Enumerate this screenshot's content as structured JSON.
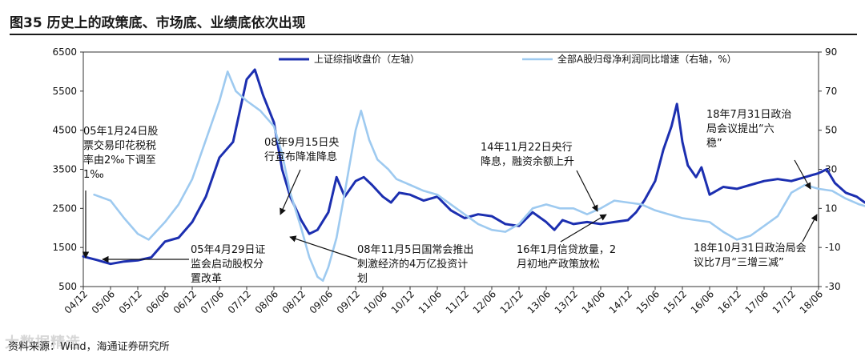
{
  "title": "图35 历史上的政策底、市场底、业绩底依次出现",
  "source": "资料来源：Wind，海通证券研究所",
  "watermark": "大数据精选",
  "chart_data": {
    "type": "line",
    "x": [
      "04/12",
      "05/06",
      "05/12",
      "06/06",
      "06/12",
      "07/06",
      "07/12",
      "08/06",
      "08/12",
      "09/06",
      "09/12",
      "10/06",
      "10/12",
      "11/06",
      "11/12",
      "12/06",
      "12/12",
      "13/06",
      "13/12",
      "14/06",
      "14/12",
      "15/06",
      "15/12",
      "16/06",
      "16/12",
      "17/06",
      "17/12",
      "18/06"
    ],
    "y_left": {
      "min": 500,
      "max": 6500,
      "ticks": [
        500,
        1500,
        2500,
        3500,
        4500,
        5500,
        6500
      ]
    },
    "y_right": {
      "min": -30,
      "max": 90,
      "ticks": [
        -30,
        -10,
        10,
        30,
        50,
        70,
        90
      ]
    },
    "series": [
      {
        "name": "上证综指收盘价（左轴）",
        "axis": "left",
        "color": "#1c2fb0",
        "points": [
          [
            0,
            1270
          ],
          [
            0.5,
            1180
          ],
          [
            1.0,
            1080
          ],
          [
            1.5,
            1140
          ],
          [
            2.0,
            1170
          ],
          [
            2.5,
            1250
          ],
          [
            3.0,
            1650
          ],
          [
            3.5,
            1750
          ],
          [
            4.0,
            2150
          ],
          [
            4.5,
            2800
          ],
          [
            5.0,
            3800
          ],
          [
            5.5,
            4200
          ],
          [
            6.0,
            5800
          ],
          [
            6.3,
            6050
          ],
          [
            6.6,
            5400
          ],
          [
            7.0,
            4700
          ],
          [
            7.3,
            3500
          ],
          [
            7.6,
            2800
          ],
          [
            8.0,
            2200
          ],
          [
            8.3,
            1850
          ],
          [
            8.6,
            1950
          ],
          [
            9.0,
            2400
          ],
          [
            9.3,
            3300
          ],
          [
            9.6,
            2800
          ],
          [
            10.0,
            3200
          ],
          [
            10.3,
            3300
          ],
          [
            10.6,
            3100
          ],
          [
            11.0,
            2800
          ],
          [
            11.3,
            2650
          ],
          [
            11.6,
            2900
          ],
          [
            12.0,
            2850
          ],
          [
            12.5,
            2700
          ],
          [
            13.0,
            2800
          ],
          [
            13.5,
            2450
          ],
          [
            14.0,
            2250
          ],
          [
            14.5,
            2350
          ],
          [
            15.0,
            2300
          ],
          [
            15.5,
            2100
          ],
          [
            16.0,
            2050
          ],
          [
            16.5,
            2400
          ],
          [
            17.0,
            2150
          ],
          [
            17.3,
            1950
          ],
          [
            17.6,
            2200
          ],
          [
            18.0,
            2100
          ],
          [
            18.5,
            2150
          ],
          [
            19.0,
            2100
          ],
          [
            19.5,
            2150
          ],
          [
            20.0,
            2200
          ],
          [
            20.3,
            2400
          ],
          [
            20.6,
            2700
          ],
          [
            21.0,
            3200
          ],
          [
            21.3,
            4000
          ],
          [
            21.6,
            4600
          ],
          [
            21.8,
            5170
          ],
          [
            22.0,
            4200
          ],
          [
            22.2,
            3600
          ],
          [
            22.5,
            3300
          ],
          [
            22.7,
            3550
          ],
          [
            23.0,
            2850
          ],
          [
            23.5,
            3050
          ],
          [
            24.0,
            3000
          ],
          [
            24.5,
            3100
          ],
          [
            25.0,
            3200
          ],
          [
            25.5,
            3250
          ],
          [
            26.0,
            3200
          ],
          [
            26.5,
            3300
          ],
          [
            27.0,
            3400
          ],
          [
            27.3,
            3500
          ],
          [
            27.6,
            3150
          ],
          [
            28.0,
            2900
          ],
          [
            28.4,
            2800
          ],
          [
            28.7,
            2650
          ],
          [
            29.0,
            2600
          ]
        ]
      },
      {
        "name": "全部A股归母净利润同比增速（右轴，%）",
        "axis": "right",
        "color": "#9ecaf0",
        "points": [
          [
            0.4,
            17
          ],
          [
            1.0,
            14
          ],
          [
            1.5,
            5
          ],
          [
            2.0,
            -3
          ],
          [
            2.4,
            -6
          ],
          [
            3.0,
            3
          ],
          [
            3.5,
            12
          ],
          [
            4.0,
            25
          ],
          [
            4.5,
            45
          ],
          [
            5.0,
            65
          ],
          [
            5.3,
            80
          ],
          [
            5.6,
            70
          ],
          [
            6.0,
            65
          ],
          [
            6.5,
            60
          ],
          [
            7.0,
            52
          ],
          [
            7.3,
            38
          ],
          [
            7.6,
            18
          ],
          [
            8.0,
            0
          ],
          [
            8.3,
            -15
          ],
          [
            8.6,
            -25
          ],
          [
            8.8,
            -27
          ],
          [
            9.0,
            -20
          ],
          [
            9.3,
            -5
          ],
          [
            9.6,
            18
          ],
          [
            10.0,
            50
          ],
          [
            10.2,
            60
          ],
          [
            10.5,
            45
          ],
          [
            10.8,
            35
          ],
          [
            11.2,
            30
          ],
          [
            11.5,
            25
          ],
          [
            12.0,
            22
          ],
          [
            12.5,
            19
          ],
          [
            13.0,
            17
          ],
          [
            13.5,
            12
          ],
          [
            14.0,
            7
          ],
          [
            14.5,
            2
          ],
          [
            15.0,
            -1
          ],
          [
            15.5,
            -2
          ],
          [
            16.0,
            2
          ],
          [
            16.5,
            10
          ],
          [
            17.0,
            12
          ],
          [
            17.5,
            10
          ],
          [
            18.0,
            10
          ],
          [
            18.5,
            7
          ],
          [
            19.0,
            10
          ],
          [
            19.5,
            14
          ],
          [
            20.0,
            13
          ],
          [
            20.5,
            12
          ],
          [
            21.0,
            9
          ],
          [
            21.5,
            7
          ],
          [
            22.0,
            5
          ],
          [
            22.5,
            4
          ],
          [
            23.0,
            3
          ],
          [
            23.5,
            -2
          ],
          [
            24.0,
            -6
          ],
          [
            24.5,
            -4
          ],
          [
            25.0,
            1
          ],
          [
            25.5,
            6
          ],
          [
            26.0,
            18
          ],
          [
            26.5,
            22
          ],
          [
            27.0,
            20
          ],
          [
            27.5,
            19
          ],
          [
            28.0,
            15
          ],
          [
            28.5,
            12
          ],
          [
            29.0,
            10
          ]
        ]
      }
    ],
    "annotations": [
      {
        "lines": [
          "05年1月24日股",
          "票交易印花税税",
          "率由2‰下调至",
          "1‰"
        ]
      },
      {
        "lines": [
          "05年4月29日证",
          "监会启动股权分",
          "置改革"
        ]
      },
      {
        "lines": [
          "08年9月15日央",
          "行宣布降准降息"
        ]
      },
      {
        "lines": [
          "08年11月5日国常会推出",
          "刺激经济的4万亿投资计",
          "划"
        ]
      },
      {
        "lines": [
          "14年11月22日央行",
          "降息，融资余额上升"
        ]
      },
      {
        "lines": [
          "16年1月信贷放量，2",
          "月初地产政策放松"
        ]
      },
      {
        "lines": [
          "18年7月31日政治",
          "局会议提出“六",
          "稳”"
        ]
      },
      {
        "lines": [
          "18年10月31日政治局会",
          "议比7月“三增三减”"
        ]
      }
    ]
  }
}
